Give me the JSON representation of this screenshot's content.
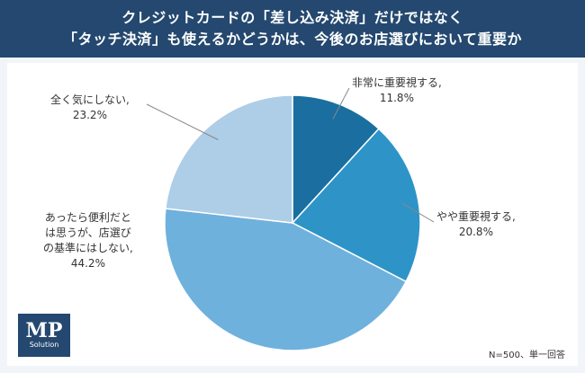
{
  "header": {
    "title_line1": "クレジットカードの「差し込み決済」だけではなく",
    "title_line2": "「タッチ決済」も使えるかどうかは、今後のお店選びにおいて重要か"
  },
  "logo": {
    "mp": "MP",
    "sub": "Solution"
  },
  "note": "N=500、単一回答",
  "chart_data": {
    "type": "pie",
    "start_angle_deg": 0,
    "direction": "clockwise",
    "categories": [
      "非常に重要視する",
      "やや重要視する",
      "あったら便利だとは思うが、店選びの基準にはしない",
      "全く気にしない"
    ],
    "values": [
      11.8,
      20.8,
      44.2,
      23.2
    ],
    "colors": [
      "#1a6fa0",
      "#2e94c8",
      "#6fb1dd",
      "#aecde7"
    ],
    "labels": [
      {
        "lines": [
          "非常に重要視する,"
        ],
        "pct": "11.8%"
      },
      {
        "lines": [
          "やや重要視する,"
        ],
        "pct": "20.8%"
      },
      {
        "lines": [
          "あったら便利だと",
          "は思うが、店選び",
          "の基準にはしない,"
        ],
        "pct": "44.2%"
      },
      {
        "lines": [
          "全く気にしない,"
        ],
        "pct": "23.2%"
      }
    ]
  }
}
